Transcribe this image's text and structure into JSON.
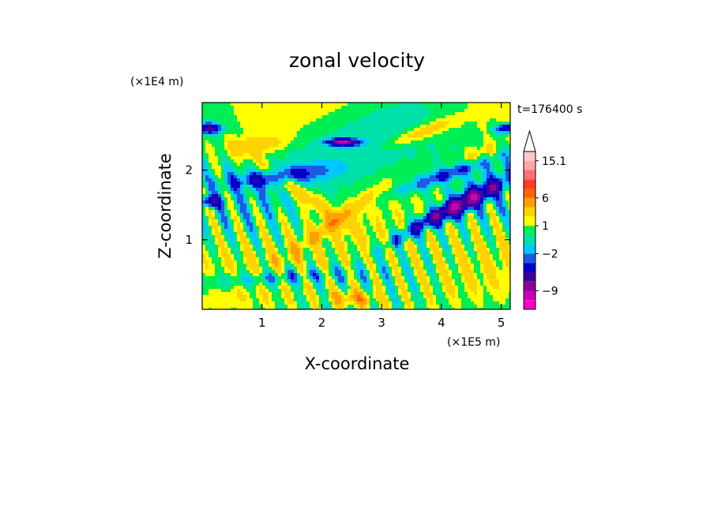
{
  "chart_data": {
    "type": "heatmap",
    "title": "zonal velocity",
    "xlabel": "X-coordinate",
    "ylabel": "Z-coordinate",
    "x_unit": "(×1E5 m)",
    "y_unit": "(×1E4 m)",
    "time_label": "t=176400 s",
    "xlim": [
      0,
      5.15
    ],
    "ylim": [
      0,
      2.97
    ],
    "x_ticks": [
      1,
      2,
      3,
      4,
      5
    ],
    "y_ticks": [
      1,
      2
    ],
    "colorbar": {
      "levels": [
        -13,
        -11,
        -9,
        -7,
        -5,
        -3,
        -2,
        -1,
        0,
        1,
        2,
        4,
        6,
        8,
        10,
        12,
        15.1
      ],
      "colors": [
        "#ff00c8",
        "#cc00b4",
        "#8c0096",
        "#3c00a0",
        "#0000c8",
        "#1e5ae6",
        "#00c8ff",
        "#00e1aa",
        "#00ee55",
        "#ffff00",
        "#ffd200",
        "#ffa000",
        "#ff6400",
        "#ff3c28",
        "#ff7070",
        "#ffa8a8",
        "#ffc8c8"
      ],
      "labels": [
        "15.1",
        "6",
        "1",
        "-2",
        "-9"
      ],
      "extend_top": true
    }
  }
}
